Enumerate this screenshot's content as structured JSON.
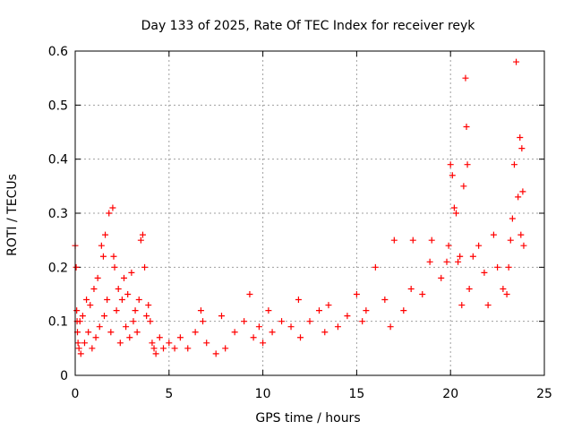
{
  "chart_data": {
    "type": "scatter",
    "title": "Day 133 of 2025, Rate Of TEC Index for receiver reyk",
    "xlabel": "GPS time / hours",
    "ylabel": "ROTI / TECUs",
    "xlim": [
      0,
      25
    ],
    "ylim": [
      0,
      0.6
    ],
    "xticks": [
      "0",
      "5",
      "10",
      "15",
      "20",
      "25"
    ],
    "yticks": [
      "0",
      "0.1",
      "0.2",
      "0.3",
      "0.4",
      "0.5",
      "0.6"
    ],
    "grid": true,
    "marker": "+",
    "color": "#ff0000",
    "series": [
      {
        "x": [
          0.0,
          0.05,
          0.08,
          0.1,
          0.12,
          0.15,
          0.2,
          0.25,
          0.3,
          0.4,
          0.5,
          0.6,
          0.7,
          0.8,
          0.9,
          1.0,
          1.1,
          1.2,
          1.3,
          1.4,
          1.5,
          1.55,
          1.6,
          1.7,
          1.8,
          1.9,
          2.0,
          2.05,
          2.1,
          2.2,
          2.3,
          2.4,
          2.5,
          2.6,
          2.7,
          2.8,
          2.9,
          3.0,
          3.1,
          3.2,
          3.3,
          3.4,
          3.5,
          3.6,
          3.7,
          3.8,
          3.9,
          4.0,
          4.1,
          4.2,
          4.3,
          4.5,
          4.7,
          5.0,
          5.3,
          5.6,
          6.0,
          6.4,
          6.7,
          6.8,
          7.0,
          7.5,
          7.8,
          8.0,
          8.5,
          9.0,
          9.3,
          9.5,
          9.8,
          10.0,
          10.3,
          10.5,
          11.0,
          11.5,
          11.9,
          12.0,
          12.5,
          13.0,
          13.3,
          13.5,
          14.0,
          14.5,
          15.0,
          15.3,
          15.5,
          16.0,
          16.5,
          16.8,
          17.0,
          17.5,
          17.9,
          18.0,
          18.5,
          18.9,
          19.0,
          19.5,
          19.8,
          19.9,
          20.0,
          20.1,
          20.2,
          20.3,
          20.4,
          20.5,
          20.6,
          20.7,
          20.8,
          20.85,
          20.9,
          21.0,
          21.2,
          21.5,
          21.8,
          22.0,
          22.3,
          22.5,
          22.8,
          23.0,
          23.1,
          23.2,
          23.3,
          23.4,
          23.5,
          23.6,
          23.7,
          23.75,
          23.8,
          23.85,
          23.9
        ],
        "y": [
          0.24,
          0.2,
          0.12,
          0.1,
          0.08,
          0.06,
          0.05,
          0.1,
          0.04,
          0.11,
          0.06,
          0.14,
          0.08,
          0.13,
          0.05,
          0.16,
          0.07,
          0.18,
          0.09,
          0.24,
          0.22,
          0.11,
          0.26,
          0.14,
          0.3,
          0.08,
          0.31,
          0.22,
          0.2,
          0.12,
          0.16,
          0.06,
          0.14,
          0.18,
          0.09,
          0.15,
          0.07,
          0.19,
          0.1,
          0.12,
          0.08,
          0.14,
          0.25,
          0.26,
          0.2,
          0.11,
          0.13,
          0.1,
          0.06,
          0.05,
          0.04,
          0.07,
          0.05,
          0.06,
          0.05,
          0.07,
          0.05,
          0.08,
          0.12,
          0.1,
          0.06,
          0.04,
          0.11,
          0.05,
          0.08,
          0.1,
          0.15,
          0.07,
          0.09,
          0.06,
          0.12,
          0.08,
          0.1,
          0.09,
          0.14,
          0.07,
          0.1,
          0.12,
          0.08,
          0.13,
          0.09,
          0.11,
          0.15,
          0.1,
          0.12,
          0.2,
          0.14,
          0.09,
          0.25,
          0.12,
          0.16,
          0.25,
          0.15,
          0.21,
          0.25,
          0.18,
          0.21,
          0.24,
          0.39,
          0.37,
          0.31,
          0.3,
          0.21,
          0.22,
          0.13,
          0.35,
          0.55,
          0.46,
          0.39,
          0.16,
          0.22,
          0.24,
          0.19,
          0.13,
          0.26,
          0.2,
          0.16,
          0.15,
          0.2,
          0.25,
          0.29,
          0.39,
          0.58,
          0.33,
          0.44,
          0.26,
          0.42,
          0.34,
          0.24
        ]
      }
    ]
  }
}
